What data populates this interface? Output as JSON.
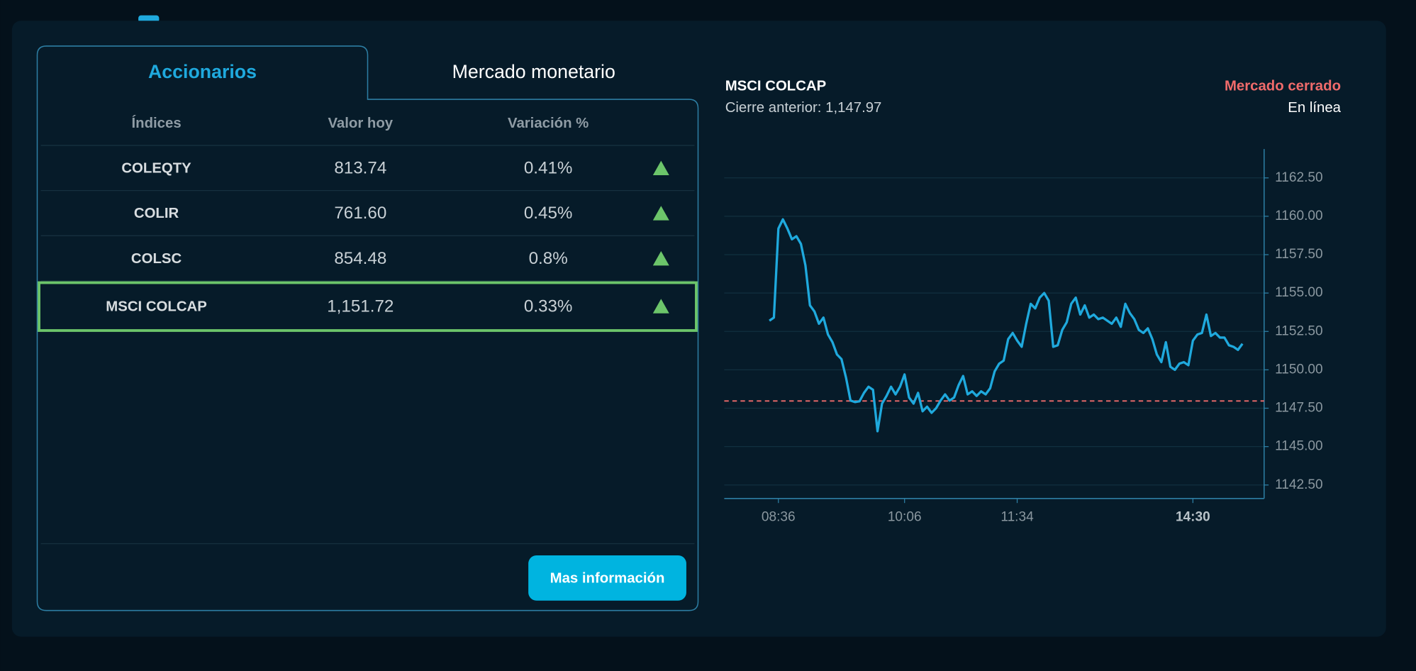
{
  "tabs": [
    "Accionarios",
    "Mercado monetario"
  ],
  "table": {
    "headers": [
      "Índices",
      "Valor hoy",
      "Variación %"
    ],
    "rows": [
      [
        "COLEQTY",
        "813.74",
        "0.41%"
      ],
      [
        "COLIR",
        "761.60",
        "0.45%"
      ],
      [
        "COLSC",
        "854.48",
        "0.8%"
      ],
      [
        "MSCI COLCAP",
        "1,151.72",
        "0.33%"
      ]
    ]
  },
  "button": "Mas información",
  "status": {
    "market": "Mercado cerrado",
    "connection": "En línea"
  },
  "chart_data": {
    "type": "line",
    "title": "MSCI COLCAP",
    "subtitle": "Cierre anterior: 1,147.97",
    "reference_line": 1147.97,
    "categories": [
      null,
      null,
      "08:36",
      null,
      null,
      null,
      null,
      null,
      null,
      null,
      null,
      null,
      null,
      null,
      null,
      null,
      null,
      null,
      null,
      null,
      null,
      null,
      null,
      null,
      null,
      null,
      null,
      null,
      null,
      null,
      "10:06",
      null,
      null,
      null,
      null,
      null,
      null,
      null,
      null,
      null,
      null,
      null,
      null,
      null,
      null,
      null,
      null,
      null,
      null,
      null,
      null,
      null,
      null,
      null,
      null,
      "11:34",
      null,
      null,
      null,
      null,
      null,
      null,
      null,
      null,
      null,
      null,
      null,
      null,
      null,
      null,
      null,
      null,
      null,
      null,
      null,
      null,
      null,
      null,
      null,
      null,
      null,
      null,
      null,
      null,
      null,
      null,
      null,
      null,
      null,
      null,
      null,
      null,
      null,
      null,
      "14:30",
      null,
      null,
      null,
      null,
      null,
      null,
      null,
      null,
      null,
      null,
      null
    ],
    "series": [
      {
        "name": "MSCI COLCAP",
        "color": "#1fa9dd",
        "values": [
          1153.2,
          1153.4,
          1159.2,
          1159.8,
          1159.2,
          1158.5,
          1158.7,
          1158.2,
          1156.8,
          1154.2,
          1153.8,
          1153.0,
          1153.4,
          1152.3,
          1151.8,
          1151.0,
          1150.7,
          1149.5,
          1148.0,
          1147.9,
          1147.95,
          1148.5,
          1148.9,
          1148.7,
          1146.0,
          1147.8,
          1148.3,
          1148.9,
          1148.4,
          1148.9,
          1149.7,
          1148.2,
          1147.8,
          1148.5,
          1147.3,
          1147.6,
          1147.2,
          1147.5,
          1148.0,
          1148.4,
          1148.0,
          1148.2,
          1149.0,
          1149.6,
          1148.4,
          1148.6,
          1148.3,
          1148.6,
          1148.4,
          1148.8,
          1149.9,
          1150.4,
          1150.6,
          1152.0,
          1152.4,
          1151.9,
          1151.5,
          1153.0,
          1154.3,
          1154.0,
          1154.7,
          1155.0,
          1154.5,
          1151.5,
          1151.6,
          1152.6,
          1153.1,
          1154.3,
          1154.7,
          1153.6,
          1154.2,
          1153.4,
          1153.6,
          1153.3,
          1153.4,
          1153.2,
          1153.0,
          1153.4,
          1152.8,
          1154.3,
          1153.7,
          1153.3,
          1152.6,
          1152.4,
          1152.7,
          1152.0,
          1151.0,
          1150.5,
          1151.8,
          1150.2,
          1150.0,
          1150.4,
          1150.5,
          1150.3,
          1151.9,
          1152.3,
          1152.4,
          1153.6,
          1152.2,
          1152.4,
          1152.1,
          1152.1,
          1151.6,
          1151.5,
          1151.3,
          1151.7
        ]
      }
    ],
    "ylim": [
      1141.62,
      1164.38
    ],
    "yticks": [
      {
        "value": 1142.5,
        "label": "1142.50"
      },
      {
        "value": 1145,
        "label": "1145.00"
      },
      {
        "value": 1147.5,
        "label": "1147.50"
      },
      {
        "value": 1150,
        "label": "1150.00"
      },
      {
        "value": 1152.5,
        "label": "1152.50"
      },
      {
        "value": 1155,
        "label": "1155.00"
      },
      {
        "value": 1157.5,
        "label": "1157.50"
      },
      {
        "value": 1160,
        "label": "1160.00"
      },
      {
        "value": 1162.5,
        "label": "1162.50"
      }
    ],
    "grid": true
  }
}
